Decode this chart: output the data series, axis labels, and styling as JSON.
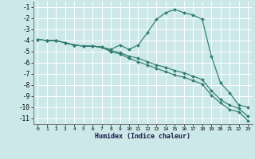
{
  "xlabel": "Humidex (Indice chaleur)",
  "bg_color": "#cce8e8",
  "grid_color": "#ffffff",
  "line_color": "#2e7d6e",
  "xlim": [
    -0.5,
    23.5
  ],
  "ylim": [
    -11.5,
    -0.5
  ],
  "xtick_labels": [
    "0",
    "1",
    "2",
    "3",
    "4",
    "5",
    "6",
    "7",
    "8",
    "9",
    "10",
    "11",
    "12",
    "13",
    "14",
    "15",
    "16",
    "17",
    "18",
    "19",
    "20",
    "21",
    "22",
    "23"
  ],
  "yticks": [
    -1,
    -2,
    -3,
    -4,
    -5,
    -6,
    -7,
    -8,
    -9,
    -10,
    -11
  ],
  "series": [
    {
      "x": [
        0,
        1,
        2,
        3,
        4,
        5,
        6,
        7,
        8,
        9,
        10,
        11,
        12,
        13,
        14,
        15,
        16,
        17,
        18,
        19,
        20,
        21,
        22,
        23
      ],
      "y": [
        -3.9,
        -4.0,
        -4.0,
        -4.2,
        -4.4,
        -4.5,
        -4.5,
        -4.6,
        -4.8,
        -4.4,
        -4.8,
        -4.4,
        -3.3,
        -2.1,
        -1.5,
        -1.2,
        -1.5,
        -1.7,
        -2.1,
        -5.4,
        -7.8,
        -8.7,
        -9.8,
        -10.0
      ]
    },
    {
      "x": [
        0,
        1,
        2,
        3,
        4,
        5,
        6,
        7,
        8,
        9,
        10,
        11,
        12,
        13,
        14,
        15,
        16,
        17,
        18,
        19,
        20,
        21,
        22,
        23
      ],
      "y": [
        -3.9,
        -4.0,
        -4.0,
        -4.2,
        -4.4,
        -4.5,
        -4.5,
        -4.6,
        -4.9,
        -5.1,
        -5.4,
        -5.6,
        -5.9,
        -6.2,
        -6.4,
        -6.7,
        -6.9,
        -7.2,
        -7.5,
        -8.5,
        -9.3,
        -9.8,
        -10.1,
        -10.8
      ]
    },
    {
      "x": [
        0,
        1,
        2,
        3,
        4,
        5,
        6,
        7,
        8,
        9,
        10,
        11,
        12,
        13,
        14,
        15,
        16,
        17,
        18,
        19,
        20,
        21,
        22,
        23
      ],
      "y": [
        -3.9,
        -4.0,
        -4.0,
        -4.2,
        -4.4,
        -4.5,
        -4.5,
        -4.6,
        -5.0,
        -5.2,
        -5.6,
        -5.9,
        -6.2,
        -6.5,
        -6.8,
        -7.1,
        -7.3,
        -7.6,
        -7.9,
        -8.9,
        -9.6,
        -10.2,
        -10.4,
        -11.2
      ]
    }
  ]
}
